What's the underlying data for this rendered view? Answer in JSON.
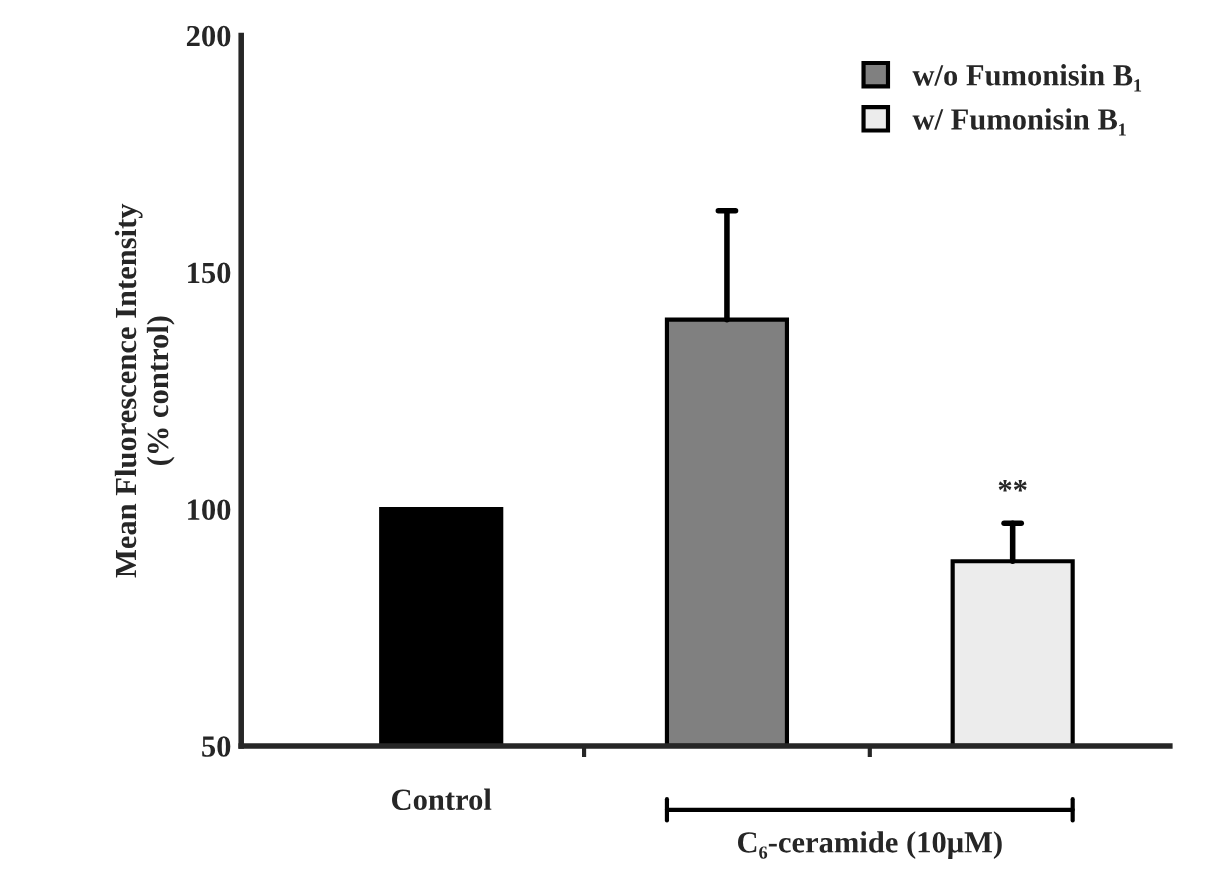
{
  "chart_data": {
    "type": "bar",
    "ylabel": "Mean Fluorescence Intensity\n(% control)",
    "categories": [
      "Control",
      null,
      null
    ],
    "series": [
      {
        "color": "#000000",
        "values": [
          100,
          null,
          null
        ]
      },
      {
        "name": "w/o Fumonisin B₁",
        "color": "#808080",
        "values": [
          null,
          140,
          null
        ],
        "errors": [
          null,
          [
            140,
            163
          ],
          null
        ]
      },
      {
        "name": "w/ Fumonisin B₁",
        "color": "#ececec",
        "values": [
          null,
          null,
          89
        ],
        "errors": [
          null,
          null,
          [
            89,
            97
          ]
        ]
      }
    ],
    "annotations": [
      "**",
      "C₆-ceramide (10μM)"
    ],
    "ylim": [
      50,
      200
    ],
    "yticks": [
      50,
      100,
      150,
      200
    ],
    "grid": false,
    "legend": "top right"
  }
}
